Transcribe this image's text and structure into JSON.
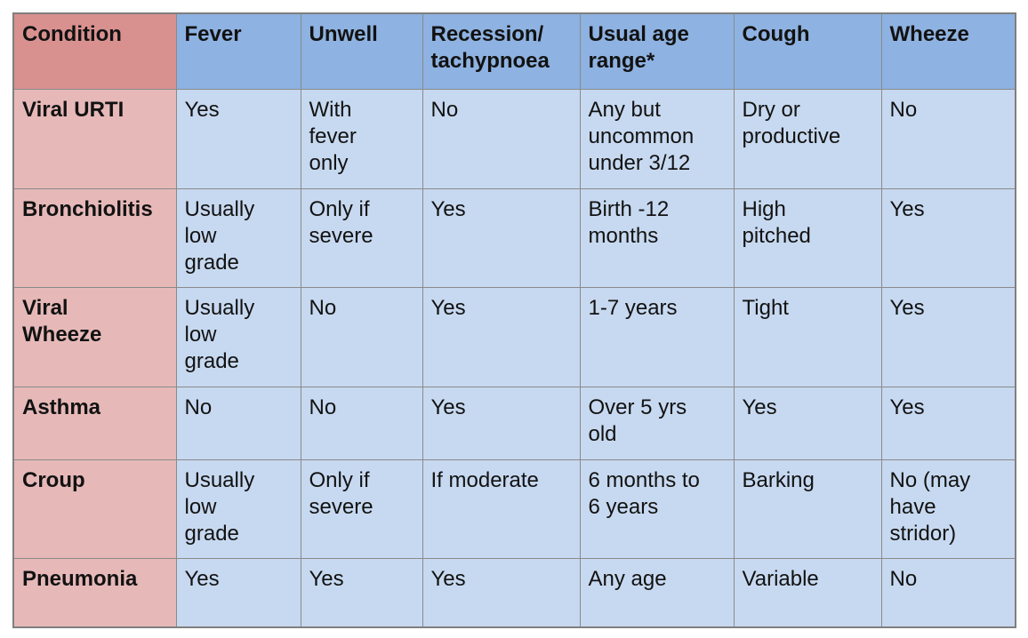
{
  "colors": {
    "page-bg": "#ffffff",
    "header-pink": "#d9918f",
    "header-blue": "#8eb2e1",
    "body-pink": "#e6b9b8",
    "body-blue": "#c7d9f0",
    "grid-line": "#8a8a8a",
    "outer-border": "#7f7f7f",
    "text": "#121212"
  },
  "table": {
    "headers": [
      "Condition",
      "Fever",
      "Unwell",
      "Recession/\ntachypnoea",
      "Usual age\nrange*",
      "Cough",
      "Wheeze"
    ],
    "rows": [
      {
        "cells": [
          "Viral URTI",
          "Yes",
          "With\nfever\nonly",
          "No",
          "Any but\nuncommon\nunder 3/12",
          "Dry or\nproductive",
          "No"
        ]
      },
      {
        "cells": [
          "Bronchiolitis",
          "Usually\nlow\ngrade",
          "Only if\nsevere",
          "Yes",
          "Birth -12\nmonths",
          "High\npitched",
          "Yes"
        ]
      },
      {
        "cells": [
          "Viral\nWheeze",
          "Usually\nlow\ngrade",
          "No",
          "Yes",
          "1-7 years",
          "Tight",
          "Yes"
        ]
      },
      {
        "cells": [
          "Asthma",
          "No",
          "No",
          "Yes",
          "Over 5 yrs\nold",
          "Yes",
          "Yes"
        ]
      },
      {
        "cells": [
          "Croup",
          "Usually\nlow\ngrade",
          "Only if\nsevere",
          "If moderate",
          "6 months to\n6 years",
          "Barking",
          "No (may\nhave\nstridor)"
        ]
      },
      {
        "cells": [
          "Pneumonia",
          "Yes",
          "Yes",
          "Yes",
          "Any age",
          "Variable",
          "No"
        ]
      }
    ]
  }
}
